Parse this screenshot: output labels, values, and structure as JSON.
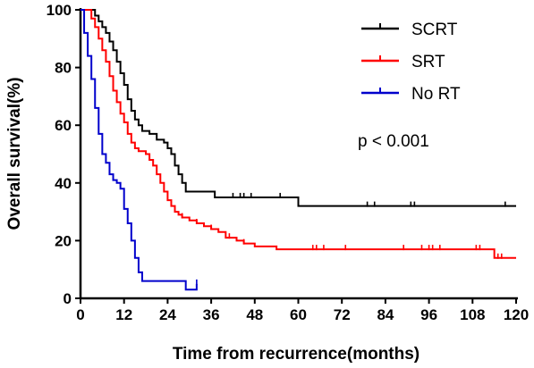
{
  "chart_data": {
    "type": "line",
    "xlabel": "Time from recurrence(months)",
    "ylabel": "Overall survival(%)",
    "xlim": [
      0,
      120
    ],
    "ylim": [
      0,
      100
    ],
    "x_ticks": [
      0,
      12,
      24,
      36,
      48,
      60,
      72,
      84,
      96,
      108,
      120
    ],
    "y_ticks": [
      0,
      20,
      40,
      60,
      80,
      100
    ],
    "grid": false,
    "legend_position": "top-right",
    "annotation": "p < 0.001",
    "series": [
      {
        "name": "SCRT",
        "color": "#000000",
        "step": true,
        "points": [
          [
            0,
            100
          ],
          [
            3,
            100
          ],
          [
            4,
            98
          ],
          [
            5,
            96
          ],
          [
            6,
            94
          ],
          [
            7,
            92
          ],
          [
            8,
            89
          ],
          [
            9,
            86
          ],
          [
            10,
            82
          ],
          [
            11,
            78
          ],
          [
            12,
            74
          ],
          [
            13,
            69
          ],
          [
            14,
            65
          ],
          [
            15,
            62
          ],
          [
            16,
            60
          ],
          [
            17,
            58
          ],
          [
            19,
            57
          ],
          [
            21,
            55
          ],
          [
            23,
            54
          ],
          [
            24,
            52
          ],
          [
            25,
            50
          ],
          [
            26,
            46
          ],
          [
            27,
            43
          ],
          [
            28,
            40
          ],
          [
            29,
            37
          ],
          [
            36,
            37
          ],
          [
            37,
            35
          ],
          [
            59,
            35
          ],
          [
            60,
            32
          ],
          [
            120,
            32
          ]
        ],
        "censor": [
          42,
          44,
          45,
          47,
          55,
          79,
          81,
          91,
          92,
          117
        ]
      },
      {
        "name": "SRT",
        "color": "#ff0000",
        "step": true,
        "points": [
          [
            0,
            100
          ],
          [
            2,
            100
          ],
          [
            3,
            97
          ],
          [
            4,
            94
          ],
          [
            5,
            90
          ],
          [
            6,
            86
          ],
          [
            7,
            82
          ],
          [
            8,
            77
          ],
          [
            9,
            72
          ],
          [
            10,
            68
          ],
          [
            11,
            64
          ],
          [
            12,
            61
          ],
          [
            13,
            57
          ],
          [
            14,
            54
          ],
          [
            15,
            52
          ],
          [
            16,
            51
          ],
          [
            18,
            50
          ],
          [
            19,
            48
          ],
          [
            20,
            46
          ],
          [
            21,
            43
          ],
          [
            22,
            40
          ],
          [
            23,
            37
          ],
          [
            24,
            34
          ],
          [
            25,
            32
          ],
          [
            26,
            30
          ],
          [
            27,
            29
          ],
          [
            28,
            28
          ],
          [
            30,
            27
          ],
          [
            32,
            26
          ],
          [
            34,
            25
          ],
          [
            36,
            24
          ],
          [
            38,
            23
          ],
          [
            40,
            21
          ],
          [
            43,
            20
          ],
          [
            45,
            19
          ],
          [
            48,
            18
          ],
          [
            53,
            18
          ],
          [
            54,
            17
          ],
          [
            113,
            17
          ],
          [
            114,
            14
          ],
          [
            120,
            14
          ]
        ],
        "censor": [
          28,
          32,
          36,
          41,
          45,
          64,
          65,
          67,
          73,
          89,
          94,
          96,
          97,
          99,
          109,
          110,
          115,
          116
        ]
      },
      {
        "name": "No RT",
        "color": "#0000cc",
        "step": true,
        "points": [
          [
            0,
            100
          ],
          [
            1,
            92
          ],
          [
            2,
            84
          ],
          [
            3,
            76
          ],
          [
            4,
            66
          ],
          [
            5,
            57
          ],
          [
            6,
            50
          ],
          [
            7,
            47
          ],
          [
            8,
            43
          ],
          [
            9,
            41
          ],
          [
            10,
            40
          ],
          [
            11,
            38
          ],
          [
            12,
            31
          ],
          [
            13,
            26
          ],
          [
            14,
            20
          ],
          [
            15,
            14
          ],
          [
            16,
            9
          ],
          [
            17,
            6
          ],
          [
            28,
            6
          ],
          [
            29,
            3
          ],
          [
            32,
            3
          ],
          [
            32,
            5
          ]
        ],
        "censor": [
          32
        ]
      }
    ]
  }
}
